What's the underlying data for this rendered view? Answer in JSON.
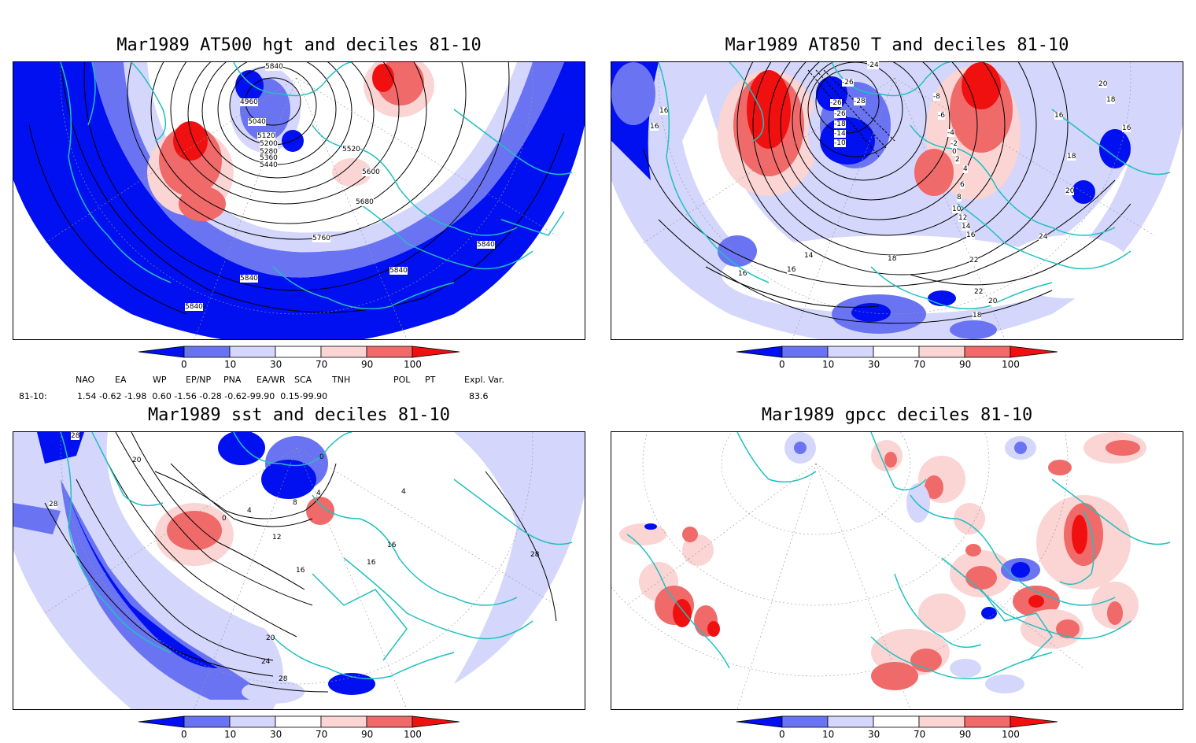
{
  "colors": {
    "blue_dark": "#0010f0",
    "blue_mid": "#6a74f2",
    "blue_light": "#d4d6fb",
    "red_light": "#fbd4d4",
    "red_mid": "#f06a6a",
    "red_dark": "#f01010",
    "coast": "#20c0c0"
  },
  "panels": {
    "tl": {
      "title": "Mar1989 AT500 hgt and deciles 81-10",
      "contour_labels": [
        "4960",
        "5040",
        "5120",
        "5200",
        "5280",
        "5360",
        "5440",
        "5520",
        "5600",
        "5680",
        "5760",
        "5840",
        "5840",
        "5840",
        "5840",
        "5840"
      ]
    },
    "tr": {
      "title": "Mar1989 AT850 T and deciles 81-10",
      "contour_labels": [
        "-24",
        "-26",
        "-26",
        "-28",
        "-26",
        "-18",
        "-14",
        "-10",
        "-8",
        "-6",
        "-4",
        "-2",
        "0",
        "2",
        "4",
        "6",
        "8",
        "10",
        "12",
        "14",
        "16",
        "16",
        "16",
        "16",
        "16",
        "18",
        "18",
        "20",
        "20",
        "20",
        "22",
        "22",
        "24",
        "14",
        "16",
        "18",
        "16",
        "18"
      ]
    },
    "bl": {
      "title": "Mar1989 sst and deciles 81-10",
      "contour_labels": [
        "28",
        "20",
        "28",
        "0",
        "4",
        "8",
        "12",
        "16",
        "16",
        "16",
        "20",
        "24",
        "28",
        "28",
        "0",
        "4",
        "4"
      ]
    },
    "br": {
      "title": "Mar1989 gpcc deciles 81-10"
    }
  },
  "colorbar": {
    "tick_labels": [
      "0",
      "10",
      "30",
      "70",
      "90",
      "100"
    ]
  },
  "teleconnections": {
    "headers": [
      "NAO",
      "EA",
      "WP",
      "EP/NP",
      "PNA",
      "EA/WR",
      "SCA",
      "TNH",
      "POL",
      "PT",
      "Expl. Var."
    ],
    "row_label": "81-10:",
    "values": "1.54 -0.62 -1.98  0.60 -1.56 -0.28 -0.62-99.90  0.15-99.90",
    "expl_var": "83.6"
  }
}
